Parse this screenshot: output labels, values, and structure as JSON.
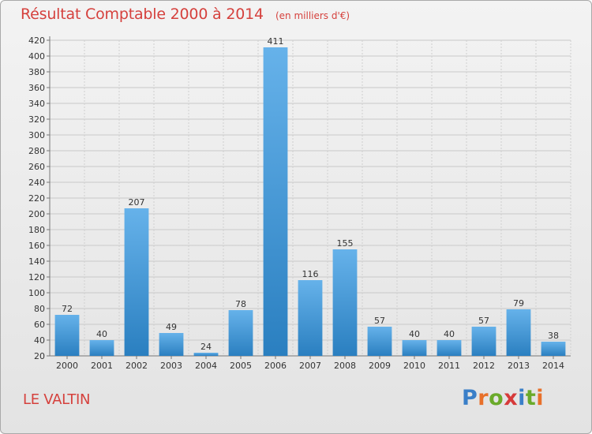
{
  "header": {
    "title": "Résultat Comptable 2000 à 2014",
    "subtitle": "(en milliers d'€)"
  },
  "footer": {
    "commune": "LE VALTIN",
    "brand": "Proxiti"
  },
  "colors": {
    "title": "#d5413d",
    "bar_light": "#66b2ea",
    "bar_dark": "#2a7fc0",
    "brand_letters": [
      "#3a7fc8",
      "#e8702a",
      "#6aaa2a",
      "#d63a3a",
      "#3a7fc8",
      "#6aaa2a",
      "#e8702a"
    ]
  },
  "chart_data": {
    "type": "bar",
    "title": "Résultat Comptable 2000 à 2014",
    "unit": "(en milliers d'€)",
    "categories": [
      "2000",
      "2001",
      "2002",
      "2003",
      "2004",
      "2005",
      "2006",
      "2007",
      "2008",
      "2009",
      "2010",
      "2011",
      "2012",
      "2013",
      "2014"
    ],
    "values": [
      72,
      40,
      207,
      49,
      24,
      78,
      411,
      116,
      155,
      57,
      40,
      40,
      57,
      79,
      38
    ],
    "value_labels": [
      "72",
      "40",
      "207",
      "49",
      "24",
      "78",
      "411",
      "116",
      "155",
      "57",
      "40",
      "40",
      "57",
      "79",
      "38"
    ],
    "ylim": [
      20,
      420
    ],
    "yticks": [
      "20",
      "40",
      "60",
      "80",
      "100",
      "120",
      "140",
      "160",
      "180",
      "200",
      "220",
      "240",
      "260",
      "280",
      "300",
      "320",
      "340",
      "360",
      "380",
      "400",
      "420"
    ],
    "grid": true,
    "xlabel": "",
    "ylabel": ""
  }
}
